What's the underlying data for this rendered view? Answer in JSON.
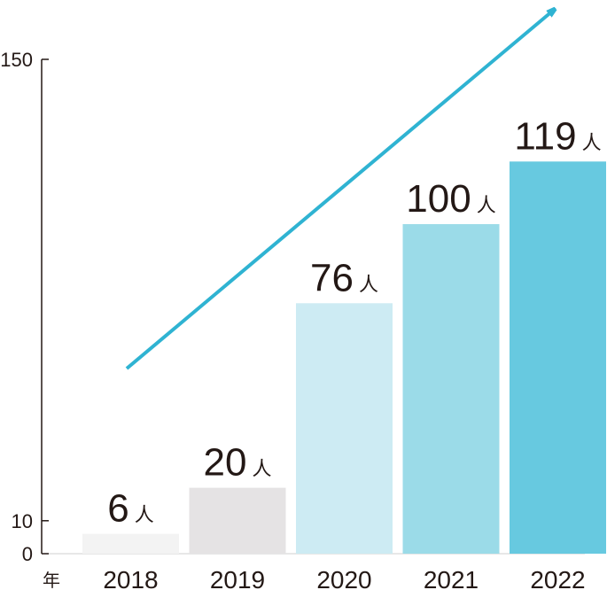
{
  "chart_data": {
    "type": "bar",
    "categories": [
      "2018",
      "2019",
      "2020",
      "2021",
      "2022"
    ],
    "values": [
      6,
      20,
      76,
      100,
      119
    ],
    "value_suffix": "人",
    "x_unit_label": "年",
    "yticks": [
      "0",
      "10",
      "150"
    ],
    "ylim": [
      0,
      150
    ],
    "colors": [
      "#f3f3f3",
      "#e5e3e4",
      "#cdebf3",
      "#9bdbe8",
      "#67c9e0"
    ],
    "arrow_color": "#2fb3d2",
    "axis_color": "#231815"
  }
}
